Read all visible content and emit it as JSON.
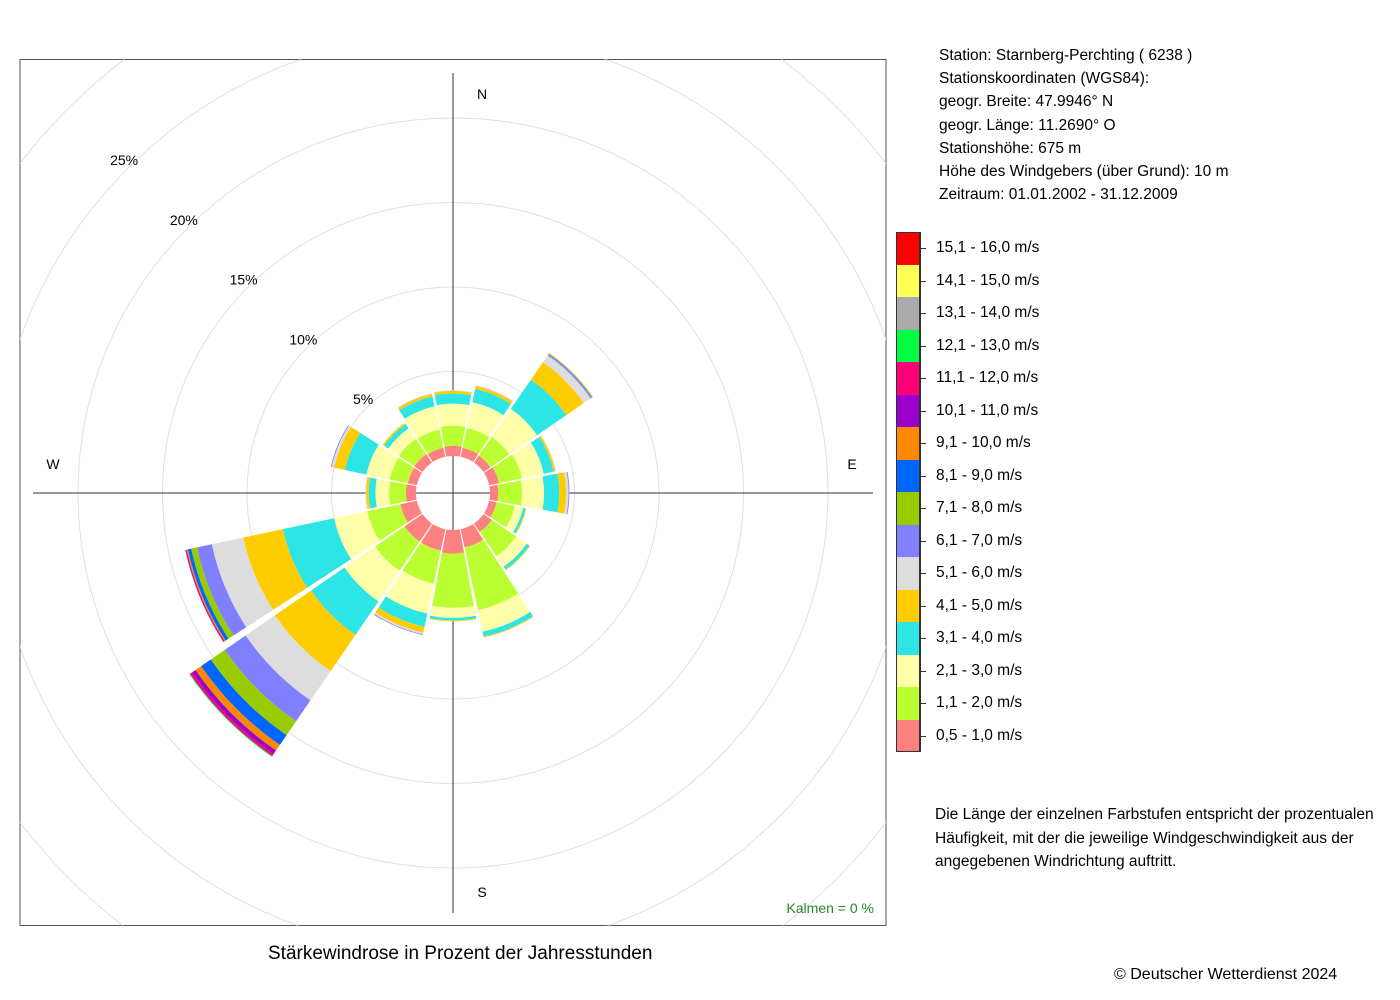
{
  "station": {
    "line1": "Station:  Starnberg-Perchting  ( 6238 )",
    "line2": "Stationskoordinaten (WGS84):",
    "line3": "geogr. Breite: 47.9946° N",
    "line4": "geogr. Länge: 11.2690° O",
    "line5": "Stationshöhe: 675 m",
    "line6": "Höhe des Windgebers (über Grund): 10 m",
    "line7": "Zeitraum: 01.01.2002 - 31.12.2009"
  },
  "note": {
    "line1": "Die Länge der einzelnen Farbstufen entspricht der prozentualen",
    "line2": "Häufigkeit, mit der die jeweilige Windgeschwindigkeit aus der",
    "line3": "angegebenen Windrichtung auftritt."
  },
  "caption": "Stärkewindrose in Prozent der Jahresstunden",
  "copyright": "© Deutscher Wetterdienst  2024",
  "calm": "Kalmen  =  0 %",
  "chart_data": {
    "type": "windrose",
    "title": "Stärkewindrose in Prozent der Jahresstunden",
    "directions": [
      "N",
      "NNO",
      "NO",
      "ONO",
      "O",
      "OSO",
      "SO",
      "SSO",
      "S",
      "SSW",
      "SW",
      "WSW",
      "W",
      "WNW",
      "NW",
      "NNW"
    ],
    "direction_angles_deg": [
      0,
      22.5,
      45,
      67.5,
      90,
      112.5,
      135,
      157.5,
      180,
      202.5,
      225,
      247.5,
      270,
      292.5,
      315,
      337.5
    ],
    "compass_labels": [
      "N",
      "E",
      "S",
      "W"
    ],
    "radial_ticks": [
      5,
      10,
      15,
      20,
      25
    ],
    "radial_tick_labels": [
      "5%",
      "10%",
      "15%",
      "20%",
      "25%"
    ],
    "radial_unit": "%",
    "calm_percent": 0,
    "speed_classes": [
      {
        "label": "0,5 - 1,0 m/s",
        "color": "#FF8080"
      },
      {
        "label": "1,1 - 2,0 m/s",
        "color": "#BBFF33"
      },
      {
        "label": "2,1 - 3,0 m/s",
        "color": "#FFFFAA"
      },
      {
        "label": "3,1 - 4,0 m/s",
        "color": "#2EE5E5"
      },
      {
        "label": "4,1 - 5,0 m/s",
        "color": "#FFCC00"
      },
      {
        "label": "5,1 - 6,0 m/s",
        "color": "#DDDDDD"
      },
      {
        "label": "6,1 - 7,0 m/s",
        "color": "#8080FF"
      },
      {
        "label": "7,1 - 8,0 m/s",
        "color": "#99CC00"
      },
      {
        "label": "8,1 - 9,0 m/s",
        "color": "#0066FF"
      },
      {
        "label": "9,1 - 10,0 m/s",
        "color": "#FF8800"
      },
      {
        "label": "10,1 - 11,0 m/s",
        "color": "#9900CC"
      },
      {
        "label": "11,1 - 12,0 m/s",
        "color": "#FF0077"
      },
      {
        "label": "12,1 - 13,0 m/s",
        "color": "#00FF44"
      },
      {
        "label": "13,1 - 14,0 m/s",
        "color": "#AAAAAA"
      },
      {
        "label": "14,1 - 15,0 m/s",
        "color": "#FFFF55"
      },
      {
        "label": "15,1 - 16,0 m/s",
        "color": "#FF0000"
      }
    ],
    "series": [
      {
        "direction": "N",
        "values": [
          0.6,
          1.2,
          1.3,
          0.6,
          0.15,
          0.05,
          0,
          0,
          0,
          0,
          0,
          0,
          0,
          0,
          0,
          0
        ]
      },
      {
        "direction": "NNO",
        "values": [
          0.55,
          1.2,
          1.55,
          0.8,
          0.18,
          0.05,
          0,
          0,
          0,
          0,
          0,
          0,
          0,
          0,
          0,
          0
        ]
      },
      {
        "direction": "NO",
        "values": [
          0.5,
          1.35,
          2.0,
          2.1,
          1.25,
          0.5,
          0.1,
          0.05,
          0,
          0,
          0,
          0,
          0,
          0,
          0,
          0
        ]
      },
      {
        "direction": "ONO",
        "values": [
          0.6,
          1.4,
          1.3,
          0.6,
          0.1,
          0.05,
          0,
          0,
          0,
          0,
          0,
          0,
          0,
          0,
          0,
          0
        ]
      },
      {
        "direction": "O",
        "values": [
          0.5,
          1.4,
          1.3,
          0.9,
          0.4,
          0.15,
          0.05,
          0,
          0,
          0,
          0,
          0,
          0,
          0,
          0,
          0
        ]
      },
      {
        "direction": "OSO",
        "values": [
          0.45,
          1.1,
          0.5,
          0.15,
          0.05,
          0,
          0,
          0,
          0,
          0,
          0,
          0,
          0,
          0,
          0,
          0
        ]
      },
      {
        "direction": "SO",
        "values": [
          0.6,
          1.75,
          0.75,
          0.2,
          0.05,
          0,
          0,
          0,
          0,
          0,
          0,
          0,
          0,
          0,
          0,
          0
        ]
      },
      {
        "direction": "SSO",
        "values": [
          1.1,
          3.8,
          1.3,
          0.3,
          0.05,
          0,
          0,
          0,
          0,
          0,
          0,
          0,
          0,
          0,
          0,
          0
        ]
      },
      {
        "direction": "S",
        "values": [
          1.4,
          3.2,
          0.6,
          0.15,
          0.05,
          0,
          0,
          0,
          0,
          0,
          0,
          0,
          0,
          0,
          0,
          0
        ]
      },
      {
        "direction": "SSW",
        "values": [
          1.3,
          2.0,
          1.8,
          0.8,
          0.35,
          0.1,
          0.05,
          0,
          0,
          0,
          0,
          0,
          0,
          0,
          0,
          0
        ]
      },
      {
        "direction": "SW",
        "values": [
          1.3,
          2.1,
          2.2,
          2.4,
          2.6,
          2.1,
          1.5,
          1.0,
          0.7,
          0.4,
          0.25,
          0.15,
          0.05,
          0,
          0,
          0
        ]
      },
      {
        "direction": "WSW",
        "values": [
          1.0,
          2.0,
          2.0,
          3.1,
          2.4,
          1.9,
          0.9,
          0.35,
          0.2,
          0.08,
          0.05,
          0.03,
          0,
          0,
          0,
          0
        ]
      },
      {
        "direction": "W",
        "values": [
          0.6,
          1.0,
          0.8,
          0.4,
          0.15,
          0.05,
          0,
          0,
          0,
          0,
          0,
          0,
          0,
          0,
          0,
          0
        ]
      },
      {
        "direction": "WNW",
        "values": [
          0.55,
          1.1,
          1.4,
          1.3,
          0.65,
          0.15,
          0.05,
          0,
          0,
          0,
          0,
          0,
          0,
          0,
          0,
          0
        ]
      },
      {
        "direction": "NW",
        "values": [
          0.6,
          1.1,
          0.75,
          0.3,
          0.1,
          0,
          0,
          0,
          0,
          0,
          0,
          0,
          0,
          0,
          0,
          0
        ]
      },
      {
        "direction": "NNW",
        "values": [
          0.55,
          1.1,
          1.4,
          0.6,
          0.15,
          0.05,
          0,
          0,
          0,
          0,
          0,
          0,
          0,
          0,
          0,
          0
        ]
      }
    ]
  }
}
